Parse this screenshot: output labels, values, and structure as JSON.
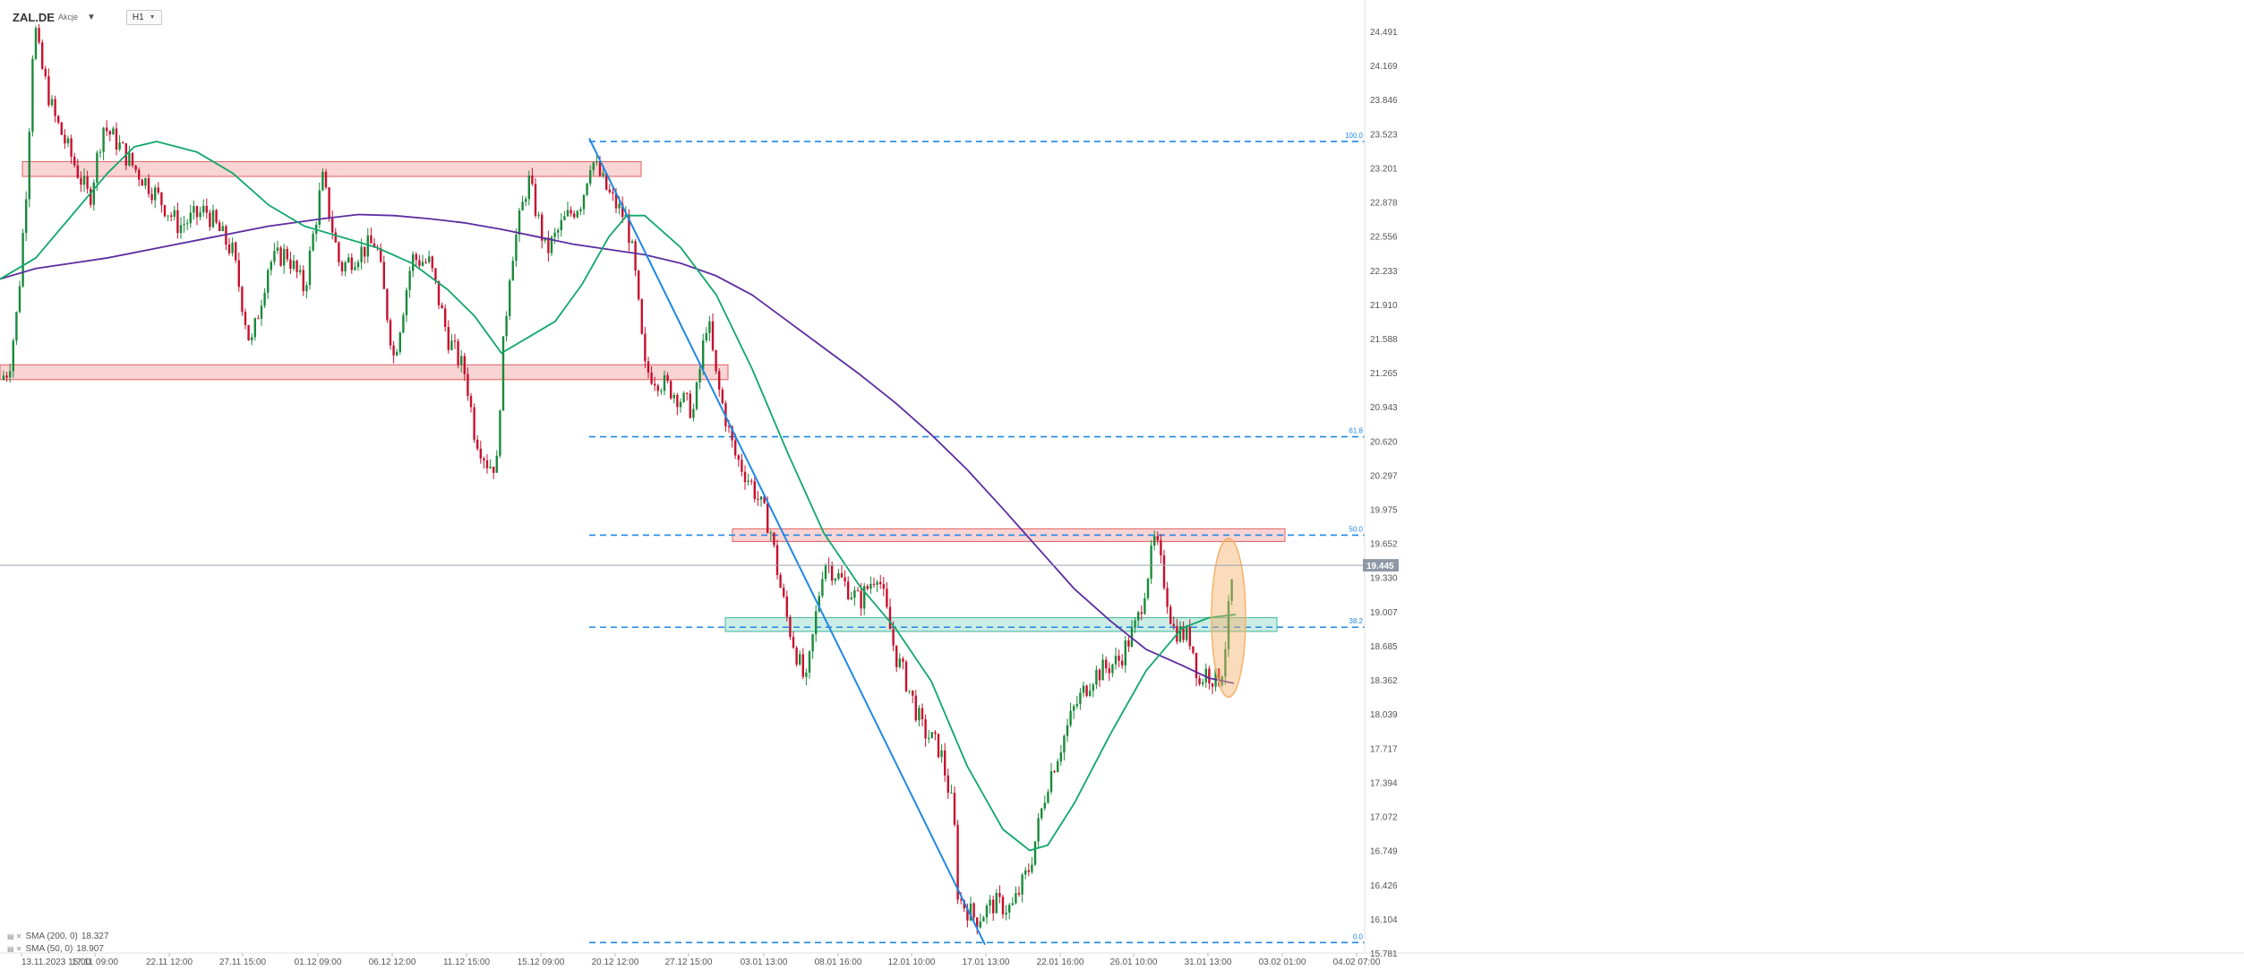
{
  "header": {
    "symbol": "ZAL.DE",
    "exchange": "Akcje",
    "timeframe": "H1"
  },
  "legend": [
    {
      "label": "SMA (200, 0)",
      "value": "18.327",
      "color": "#5b2ca0"
    },
    {
      "label": "SMA (50, 0)",
      "value": "18.907",
      "color": "#10a76b"
    }
  ],
  "colors": {
    "bull": "#1a8a3a",
    "bear": "#c8102e",
    "sma50": "#10a76b",
    "sma200": "#5b2ca0",
    "fib": "#1e88e5",
    "trend": "#1e88e5",
    "resistance_fill": "#f7c6c6",
    "resistance_border": "#e06060",
    "support_fill": "#bfe9df",
    "support_border": "#3cb89a",
    "price_tag": "#8e99a5",
    "highlight": "#f5b26b"
  },
  "chart_data": {
    "type": "candlestick",
    "ylim": [
      15.781,
      24.8
    ],
    "y_ticks": [
      "24.491",
      "24.169",
      "23.846",
      "23.523",
      "23.201",
      "22.878",
      "22.556",
      "22.233",
      "21.910",
      "21.588",
      "21.265",
      "20.943",
      "20.620",
      "20.297",
      "19.975",
      "19.652",
      "19.330",
      "19.007",
      "18.685",
      "18.362",
      "18.039",
      "17.717",
      "17.394",
      "17.072",
      "16.749",
      "16.426",
      "16.104",
      "15.781"
    ],
    "x_ticks": [
      "13.11.2023  15:00",
      "17.11 09:00",
      "22.11 12:00",
      "27.11 15:00",
      "01.12 09:00",
      "06.12 12:00",
      "11.12 15:00",
      "15.12 09:00",
      "20.12 12:00",
      "27.12 15:00",
      "03.01 13:00",
      "08.01 16:00",
      "12.01 10:00",
      "17.01 13:00",
      "22.01 16:00",
      "26.01 10:00",
      "31.01 13:00",
      "03.02 01:00",
      "04.02 07:00"
    ],
    "x_range": [
      0,
      1520
    ],
    "current_price": "19.445",
    "fibonacci": [
      {
        "level": "100.0",
        "price": 23.45
      },
      {
        "level": "61.8",
        "price": 20.66
      },
      {
        "level": "50.0",
        "price": 19.73
      },
      {
        "level": "38.2",
        "price": 18.86
      },
      {
        "level": "0.0",
        "price": 15.88
      }
    ],
    "fib_x_start": 658,
    "trendline": {
      "x": [
        658,
        1100
      ],
      "y": [
        23.48,
        15.86
      ]
    },
    "resistance_zones": [
      {
        "x": [
          25,
          716
        ],
        "y": [
          23.12,
          23.26
        ]
      },
      {
        "x": [
          0,
          813
        ],
        "y": [
          21.2,
          21.34
        ]
      },
      {
        "x": [
          818,
          1435
        ],
        "y": [
          19.67,
          19.79
        ]
      }
    ],
    "support_zones": [
      {
        "x": [
          810,
          1426
        ],
        "y": [
          18.82,
          18.95
        ]
      }
    ],
    "highlight_ellipse": {
      "cx": 1372,
      "cy": 18.95,
      "rx": 19,
      "ry": 0.75
    },
    "sma50": {
      "x": [
        0,
        40,
        80,
        120,
        150,
        175,
        220,
        260,
        300,
        340,
        380,
        420,
        460,
        500,
        530,
        560,
        590,
        620,
        650,
        680,
        700,
        720,
        760,
        800,
        840,
        880,
        920,
        960,
        1000,
        1040,
        1080,
        1120,
        1150,
        1170,
        1200,
        1240,
        1280,
        1320,
        1350,
        1380
      ],
      "y": [
        22.15,
        22.35,
        22.75,
        23.15,
        23.4,
        23.45,
        23.35,
        23.15,
        22.85,
        22.65,
        22.55,
        22.45,
        22.3,
        22.05,
        21.8,
        21.45,
        21.6,
        21.75,
        22.1,
        22.55,
        22.75,
        22.75,
        22.45,
        22.0,
        21.3,
        20.5,
        19.75,
        19.25,
        18.85,
        18.35,
        17.55,
        16.95,
        16.75,
        16.8,
        17.2,
        17.85,
        18.45,
        18.85,
        18.95,
        18.98
      ]
    },
    "sma200": {
      "x": [
        0,
        40,
        80,
        120,
        180,
        240,
        300,
        360,
        400,
        440,
        480,
        520,
        560,
        600,
        640,
        680,
        720,
        760,
        800,
        840,
        880,
        920,
        960,
        1000,
        1040,
        1080,
        1120,
        1160,
        1200,
        1240,
        1280,
        1320,
        1350,
        1378
      ],
      "y": [
        22.15,
        22.25,
        22.3,
        22.35,
        22.45,
        22.55,
        22.65,
        22.72,
        22.76,
        22.75,
        22.72,
        22.68,
        22.62,
        22.55,
        22.48,
        22.43,
        22.38,
        22.3,
        22.18,
        22.0,
        21.75,
        21.5,
        21.25,
        20.98,
        20.68,
        20.35,
        19.98,
        19.6,
        19.22,
        18.92,
        18.65,
        18.5,
        18.38,
        18.33
      ]
    },
    "anchors": {
      "x": [
        0,
        10,
        20,
        30,
        38,
        45,
        60,
        80,
        100,
        115,
        130,
        150,
        170,
        200,
        230,
        260,
        280,
        300,
        320,
        340,
        360,
        380,
        400,
        420,
        440,
        460,
        480,
        500,
        520,
        530,
        545,
        555,
        560,
        570,
        590,
        610,
        630,
        650,
        660,
        680,
        700,
        708,
        720,
        750,
        775,
        790,
        800,
        820,
        840,
        860,
        870,
        880,
        900,
        920,
        940,
        960,
        980,
        1000,
        1010,
        1030,
        1050,
        1065,
        1070,
        1090,
        1110,
        1130,
        1150,
        1170,
        1200,
        1220,
        1250,
        1270,
        1290,
        1300,
        1310,
        1330,
        1340,
        1345,
        1360,
        1366,
        1372,
        1378
      ],
      "y": [
        21.2,
        21.3,
        21.9,
        23.1,
        24.6,
        24.2,
        23.7,
        23.3,
        22.9,
        23.6,
        23.45,
        23.2,
        23.0,
        22.65,
        22.8,
        22.4,
        21.5,
        22.3,
        22.4,
        22.05,
        23.1,
        22.25,
        22.4,
        22.5,
        21.4,
        22.35,
        22.3,
        21.6,
        21.25,
        20.7,
        20.4,
        20.4,
        21.3,
        22.3,
        23.1,
        22.4,
        22.7,
        22.9,
        23.3,
        22.95,
        22.7,
        22.3,
        21.3,
        21.1,
        20.9,
        21.8,
        21.2,
        20.5,
        20.2,
        19.8,
        19.3,
        18.9,
        18.3,
        19.5,
        19.3,
        19.1,
        19.4,
        18.6,
        18.4,
        17.9,
        17.7,
        17.1,
        16.3,
        16.1,
        16.25,
        16.2,
        16.6,
        17.4,
        18.1,
        18.4,
        18.55,
        18.9,
        19.7,
        19.3,
        18.85,
        18.75,
        18.3,
        18.45,
        18.35,
        18.5,
        19.0,
        19.45
      ]
    }
  }
}
